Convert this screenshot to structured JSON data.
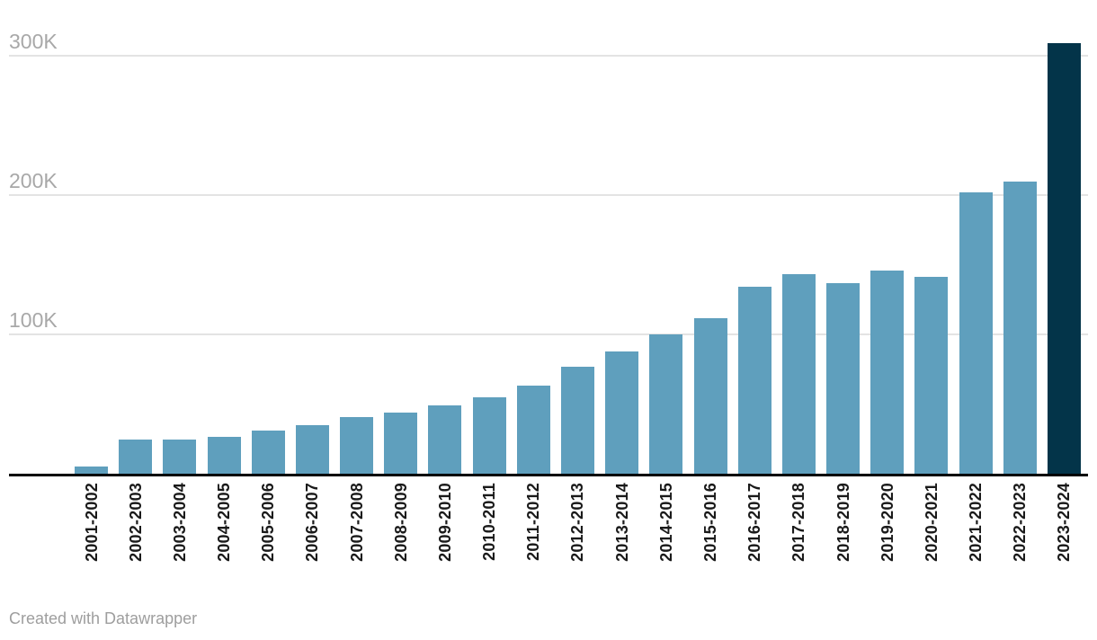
{
  "chart_data": {
    "type": "bar",
    "title": "",
    "xlabel": "",
    "ylabel": "",
    "categories": [
      "2001-2002",
      "2002-2003",
      "2003-2004",
      "2004-2005",
      "2005-2006",
      "2006-2007",
      "2007-2008",
      "2008-2009",
      "2009-2010",
      "2010-2011",
      "2011-2012",
      "2012-2013",
      "2013-2014",
      "2014-2015",
      "2015-2016",
      "2016-2017",
      "2017-2018",
      "2018-2019",
      "2019-2020",
      "2020-2021",
      "2021-2022",
      "2022-2023",
      "2023-2024"
    ],
    "values": [
      5000,
      24500,
      24500,
      26500,
      31000,
      35000,
      40500,
      44000,
      49000,
      55000,
      63500,
      76500,
      88000,
      100000,
      111500,
      134000,
      143000,
      136500,
      145500,
      141000,
      202000,
      210000,
      309000
    ],
    "ylim": [
      0,
      310000
    ],
    "yticks": [
      {
        "label": "100K",
        "value": 100000
      },
      {
        "label": "200K",
        "value": 200000
      },
      {
        "label": "300K",
        "value": 300000
      }
    ],
    "grid": "horizontal",
    "legend": "none",
    "highlight_category": "2023-2024",
    "colors": {
      "bar": "#5f9fbd",
      "highlight_bar": "#033449",
      "gridline": "#e3e3e3",
      "axis_line": "#000000",
      "ytick_text": "#a8a8a8",
      "xtick_text": "#1a1a1a"
    }
  },
  "footer": {
    "credit": "Created with Datawrapper"
  }
}
